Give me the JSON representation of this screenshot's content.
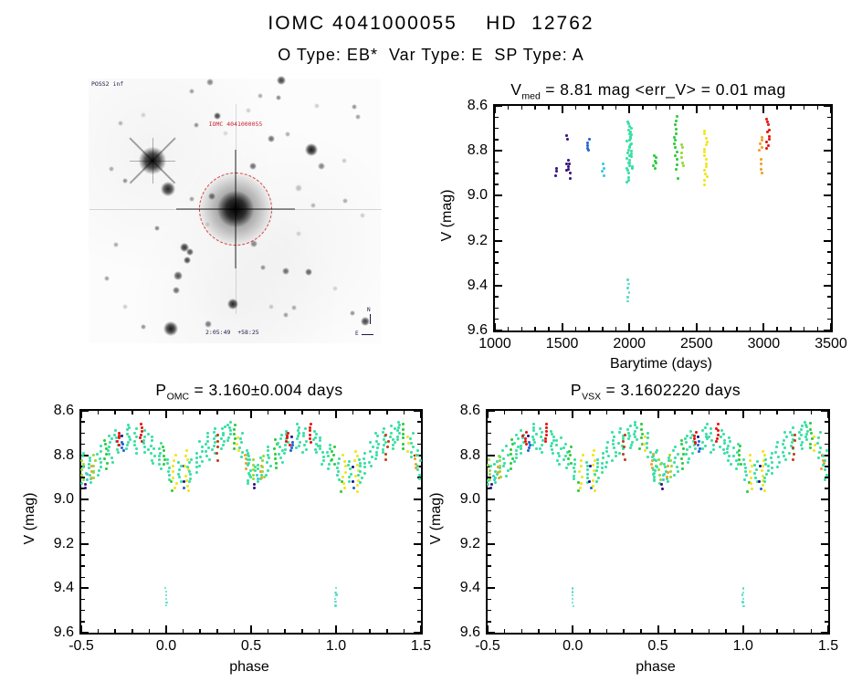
{
  "page": {
    "title_line1": "IOMC 4041000055    HD  12762",
    "title_line2": "O Type: EB*  Var Type: E  SP Type: A"
  },
  "finder": {
    "corner_label": "POSS2 inf",
    "target_label": "IOMC 4041000055",
    "bottom_label": "2:05:49  +58:25",
    "compass_north": "N",
    "compass_east": "E",
    "circle_color": "#e04040",
    "stars": [
      [
        70,
        90,
        15,
        0.95,
        1
      ],
      [
        161,
        143,
        20,
        0.97,
        2
      ],
      [
        87,
        121,
        8,
        0.85,
        0
      ],
      [
        133,
        4,
        4,
        0.5,
        0
      ],
      [
        211,
        2,
        5,
        0.75,
        0
      ],
      [
        113,
        14,
        3,
        0.4,
        0
      ],
      [
        188,
        19,
        3,
        0.35,
        0
      ],
      [
        208,
        21,
        3,
        0.5,
        0
      ],
      [
        291,
        31,
        3,
        0.45,
        0
      ],
      [
        141,
        41,
        4,
        0.75,
        0
      ],
      [
        35,
        49,
        3,
        0.3,
        0
      ],
      [
        118,
        51,
        3,
        0.45,
        0
      ],
      [
        200,
        66,
        4,
        0.6,
        0
      ],
      [
        218,
        61,
        3,
        0.35,
        0
      ],
      [
        244,
        78,
        7,
        0.9,
        0
      ],
      [
        255,
        96,
        4,
        0.5,
        0
      ],
      [
        180,
        96,
        4,
        0.6,
        0
      ],
      [
        25,
        99,
        3,
        0.35,
        0
      ],
      [
        40,
        112,
        3,
        0.45,
        0
      ],
      [
        135,
        129,
        4,
        0.55,
        0
      ],
      [
        113,
        132,
        3,
        0.4,
        0
      ],
      [
        75,
        164,
        3,
        0.5,
        0
      ],
      [
        105,
        185,
        5,
        0.8,
        0
      ],
      [
        111,
        190,
        4,
        0.7,
        0
      ],
      [
        108,
        199,
        4,
        0.75,
        0
      ],
      [
        181,
        181,
        4,
        0.5,
        0
      ],
      [
        98,
        216,
        5,
        0.7,
        0
      ],
      [
        96,
        232,
        4,
        0.6,
        0
      ],
      [
        20,
        219,
        3,
        0.4,
        0
      ],
      [
        60,
        272,
        3,
        0.45,
        0
      ],
      [
        158,
        247,
        6,
        0.85,
        0
      ],
      [
        131,
        269,
        4,
        0.55,
        0
      ],
      [
        90,
        274,
        8,
        0.9,
        0
      ],
      [
        216,
        211,
        4,
        0.6,
        0
      ],
      [
        191,
        207,
        3,
        0.45,
        0
      ],
      [
        241,
        212,
        4,
        0.65,
        0
      ],
      [
        216,
        259,
        3,
        0.4,
        0
      ],
      [
        225,
        251,
        3,
        0.35,
        0
      ],
      [
        281,
        134,
        3,
        0.35,
        0
      ],
      [
        295,
        42,
        3,
        0.4,
        0
      ],
      [
        289,
        257,
        3,
        0.45,
        0
      ],
      [
        303,
        266,
        5,
        0.75,
        0
      ],
      [
        246,
        139,
        3,
        0.3,
        0
      ],
      [
        30,
        182,
        3,
        0.35,
        0
      ],
      [
        250,
        30,
        3,
        0.2,
        0
      ],
      [
        60,
        40,
        3,
        0.18,
        0
      ],
      [
        280,
        90,
        3,
        0.22,
        0
      ],
      [
        130,
        160,
        3,
        0.15,
        0
      ],
      [
        230,
        170,
        3,
        0.18,
        0
      ],
      [
        40,
        250,
        3,
        0.2,
        0
      ],
      [
        270,
        230,
        3,
        0.18,
        0
      ],
      [
        150,
        60,
        3,
        0.15,
        0
      ],
      [
        300,
        150,
        3,
        0.2,
        0
      ],
      [
        200,
        250,
        3,
        0.22,
        0
      ],
      [
        230,
        120,
        4,
        0.25,
        0
      ],
      [
        175,
        35,
        3,
        0.2,
        0
      ]
    ]
  },
  "palette": [
    "#3a1580",
    "#191990",
    "#2365d8",
    "#3cc8e0",
    "#38e0a4",
    "#2ecc3e",
    "#9ad838",
    "#f2e41e",
    "#f0a028",
    "#e81710",
    "#c04018",
    "#54dcc8"
  ],
  "fold_clusters": [
    [
      -0.5,
      8.79,
      8.93,
      4,
      10,
      0.03
    ],
    [
      -0.49,
      8.82,
      8.91,
      6,
      5,
      0.008
    ],
    [
      -0.478,
      8.93,
      8.95,
      0,
      2,
      0.004
    ],
    [
      -0.463,
      8.89,
      8.91,
      3,
      2,
      0.004
    ],
    [
      -0.445,
      8.81,
      8.92,
      4,
      8,
      0.02
    ],
    [
      -0.44,
      8.85,
      8.9,
      8,
      3,
      0.006
    ],
    [
      -0.425,
      8.8,
      8.9,
      6,
      5,
      0.008
    ],
    [
      -0.395,
      8.76,
      8.89,
      4,
      8,
      0.018
    ],
    [
      -0.355,
      8.73,
      8.86,
      5,
      7,
      0.01
    ],
    [
      -0.33,
      8.71,
      8.83,
      4,
      8,
      0.016
    ],
    [
      -0.295,
      8.69,
      8.79,
      4,
      7,
      0.014
    ],
    [
      -0.282,
      8.7,
      8.75,
      9,
      5,
      0.01
    ],
    [
      -0.262,
      8.71,
      8.72,
      1,
      1,
      0.003
    ],
    [
      -0.258,
      8.74,
      8.78,
      2,
      4,
      0.008
    ],
    [
      -0.225,
      8.66,
      8.77,
      4,
      9,
      0.016
    ],
    [
      -0.185,
      8.68,
      8.79,
      4,
      7,
      0.014
    ],
    [
      -0.15,
      8.66,
      8.74,
      9,
      6,
      0.008
    ],
    [
      -0.12,
      8.69,
      8.79,
      4,
      8,
      0.014
    ],
    [
      -0.08,
      8.72,
      8.84,
      4,
      8,
      0.016
    ],
    [
      -0.04,
      8.75,
      8.86,
      4,
      7,
      0.014
    ],
    [
      -0.015,
      8.76,
      8.84,
      5,
      5,
      0.008
    ],
    [
      0.0,
      9.4,
      9.48,
      11,
      6,
      0.004
    ],
    [
      0.012,
      8.82,
      8.91,
      4,
      6,
      0.01
    ],
    [
      0.03,
      8.92,
      8.96,
      5,
      2,
      0.006
    ],
    [
      0.05,
      8.8,
      8.95,
      7,
      7,
      0.01
    ],
    [
      0.08,
      8.83,
      8.92,
      4,
      6,
      0.012
    ],
    [
      0.1,
      8.85,
      8.92,
      1,
      2,
      0.004
    ],
    [
      0.105,
      8.94,
      8.96,
      2,
      1,
      0.003
    ],
    [
      0.122,
      8.78,
      8.96,
      7,
      9,
      0.01
    ],
    [
      0.14,
      8.82,
      8.92,
      4,
      7,
      0.012
    ],
    [
      0.172,
      8.79,
      8.88,
      4,
      5,
      0.01
    ],
    [
      0.205,
      8.74,
      8.85,
      4,
      6,
      0.012
    ],
    [
      0.245,
      8.7,
      8.82,
      4,
      8,
      0.014
    ],
    [
      0.285,
      8.68,
      8.79,
      4,
      8,
      0.014
    ],
    [
      0.3,
      8.71,
      8.82,
      10,
      5,
      0.008
    ],
    [
      0.335,
      8.67,
      8.77,
      4,
      8,
      0.014
    ],
    [
      0.373,
      8.65,
      8.73,
      4,
      7,
      0.012
    ],
    [
      0.4,
      8.66,
      8.77,
      5,
      6,
      0.008
    ],
    [
      0.422,
      8.72,
      8.78,
      7,
      3,
      0.008
    ],
    [
      0.445,
      8.7,
      8.81,
      4,
      6,
      0.012
    ],
    [
      0.468,
      8.8,
      8.86,
      8,
      4,
      0.006
    ],
    [
      0.485,
      8.78,
      8.91,
      4,
      7,
      0.014
    ]
  ],
  "chart_data": [
    {
      "id": "barytime",
      "type": "scatter",
      "title_prefix": "V",
      "title_sub": "med",
      "title_rest": " = 8.81 mag <err_V> = 0.01 mag",
      "xlabel": "Barytime (days)",
      "ylabel": "V (mag)",
      "xlim": [
        1000,
        3500
      ],
      "ylim": [
        8.6,
        9.6
      ],
      "xtick_vals": [
        1000,
        1500,
        2000,
        2500,
        3000,
        3500
      ],
      "xtick_labels": [
        "1000",
        "1500",
        "2000",
        "2500",
        "3000",
        "3500"
      ],
      "ytick_vals": [
        8.6,
        8.8,
        9.0,
        9.2,
        9.4,
        9.6
      ],
      "ytick_labels": [
        "8.6",
        "8.8",
        "9.0",
        "9.2",
        "9.4",
        "9.6"
      ],
      "xminor": 4,
      "yminor": 3,
      "grid": false,
      "legend": false,
      "streak_format": "[barytime_days, mag_bright, mag_faint, color_index, n_points, width_px]",
      "streaks": [
        [
          1455,
          8.88,
          8.91,
          0,
          3,
          2
        ],
        [
          1540,
          8.73,
          8.75,
          0,
          2,
          2
        ],
        [
          1542,
          8.84,
          8.89,
          0,
          4,
          2
        ],
        [
          1553,
          8.86,
          8.92,
          0,
          4,
          2
        ],
        [
          1695,
          8.75,
          8.8,
          2,
          5,
          3
        ],
        [
          1805,
          8.86,
          8.91,
          3,
          4,
          3
        ],
        [
          1995,
          8.67,
          8.94,
          4,
          22,
          5
        ],
        [
          2012,
          8.7,
          8.88,
          4,
          14,
          4
        ],
        [
          1992,
          9.37,
          9.47,
          11,
          6,
          2
        ],
        [
          2185,
          8.82,
          8.88,
          5,
          6,
          4
        ],
        [
          2345,
          8.65,
          8.84,
          5,
          12,
          3
        ],
        [
          2352,
          8.86,
          8.88,
          5,
          2,
          2
        ],
        [
          2360,
          8.92,
          8.93,
          5,
          1,
          2
        ],
        [
          2395,
          8.77,
          8.87,
          6,
          6,
          3
        ],
        [
          2570,
          8.71,
          8.95,
          7,
          16,
          4
        ],
        [
          2978,
          8.74,
          8.8,
          8,
          5,
          3
        ],
        [
          2982,
          8.84,
          8.9,
          8,
          4,
          3
        ],
        [
          3028,
          8.66,
          8.79,
          9,
          10,
          4
        ]
      ]
    },
    {
      "id": "fold_omc",
      "type": "scatter",
      "title_prefix": "P",
      "title_sub": "OMC",
      "title_rest": " = 3.160±0.004 days",
      "xlabel": "phase",
      "ylabel": "V (mag)",
      "xlim": [
        -0.5,
        1.5
      ],
      "ylim": [
        8.6,
        9.6
      ],
      "xtick_vals": [
        -0.5,
        0.0,
        0.5,
        1.0,
        1.5
      ],
      "xtick_labels": [
        "-0.5",
        "0.0",
        "0.5",
        "1.0",
        "1.5"
      ],
      "ytick_vals": [
        8.6,
        8.8,
        9.0,
        9.2,
        9.4,
        9.6
      ],
      "ytick_labels": [
        "8.6",
        "8.8",
        "9.0",
        "9.2",
        "9.4",
        "9.6"
      ],
      "xminor": 4,
      "yminor": 3,
      "grid": false,
      "legend": false,
      "cluster_format": "[phase, mag_bright, mag_faint, color_index, n_points, phase_halfspread]",
      "clusters": "fold_clusters",
      "repeat_offset": 1
    },
    {
      "id": "fold_vsx",
      "type": "scatter",
      "title_prefix": "P",
      "title_sub": "VSX",
      "title_rest": " = 3.1602220 days",
      "xlabel": "phase",
      "ylabel": "V (mag)",
      "xlim": [
        -0.5,
        1.5
      ],
      "ylim": [
        8.6,
        9.6
      ],
      "xtick_vals": [
        -0.5,
        0.0,
        0.5,
        1.0,
        1.5
      ],
      "xtick_labels": [
        "-0.5",
        "0.0",
        "0.5",
        "1.0",
        "1.5"
      ],
      "ytick_vals": [
        8.6,
        8.8,
        9.0,
        9.2,
        9.4,
        9.6
      ],
      "ytick_labels": [
        "8.6",
        "8.8",
        "9.0",
        "9.2",
        "9.4",
        "9.6"
      ],
      "xminor": 4,
      "yminor": 3,
      "grid": false,
      "legend": false,
      "cluster_format": "[phase, mag_bright, mag_faint, color_index, n_points, phase_halfspread]",
      "clusters": "fold_clusters",
      "repeat_offset": 1
    }
  ]
}
